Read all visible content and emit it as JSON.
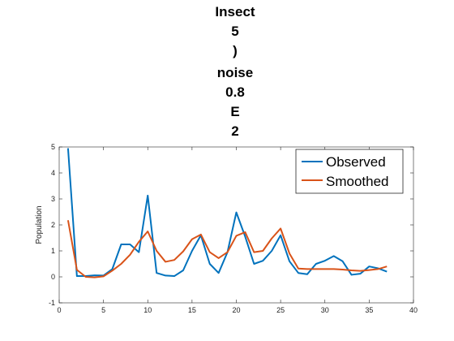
{
  "chart_data": {
    "type": "line",
    "title_lines": [
      "Insect",
      "5",
      ")",
      "noise",
      "0.8",
      "E",
      "2"
    ],
    "xlabel": "",
    "ylabel": "Population",
    "xlim": [
      0,
      40
    ],
    "ylim": [
      -1,
      5
    ],
    "xticks": [
      0,
      5,
      10,
      15,
      20,
      25,
      30,
      35,
      40
    ],
    "yticks": [
      -1,
      0,
      1,
      2,
      3,
      4,
      5
    ],
    "grid": false,
    "legend_position": "top-right",
    "x": [
      1,
      2,
      3,
      4,
      5,
      6,
      7,
      8,
      9,
      10,
      11,
      12,
      13,
      14,
      15,
      16,
      17,
      18,
      19,
      20,
      21,
      22,
      23,
      24,
      25,
      26,
      27,
      28,
      29,
      30,
      31,
      32,
      33,
      34,
      35,
      36,
      37
    ],
    "series": [
      {
        "name": "Observed",
        "color": "#0072BD",
        "values": [
          4.95,
          0.03,
          0.03,
          0.06,
          0.05,
          0.3,
          1.25,
          1.25,
          0.95,
          3.13,
          0.15,
          0.05,
          0.03,
          0.25,
          1.0,
          1.6,
          0.5,
          0.15,
          0.95,
          2.48,
          1.55,
          0.5,
          0.62,
          1.0,
          1.6,
          0.6,
          0.15,
          0.1,
          0.5,
          0.62,
          0.8,
          0.6,
          0.08,
          0.12,
          0.4,
          0.33,
          0.2
        ]
      },
      {
        "name": "Smoothed",
        "color": "#D95319",
        "values": [
          2.18,
          0.27,
          0.0,
          -0.02,
          0.02,
          0.24,
          0.5,
          0.85,
          1.35,
          1.75,
          1.0,
          0.58,
          0.65,
          0.98,
          1.45,
          1.63,
          0.95,
          0.72,
          0.95,
          1.58,
          1.72,
          0.95,
          1.0,
          1.48,
          1.86,
          0.9,
          0.32,
          0.3,
          0.3,
          0.3,
          0.3,
          0.28,
          0.25,
          0.23,
          0.26,
          0.3,
          0.4
        ]
      }
    ]
  }
}
